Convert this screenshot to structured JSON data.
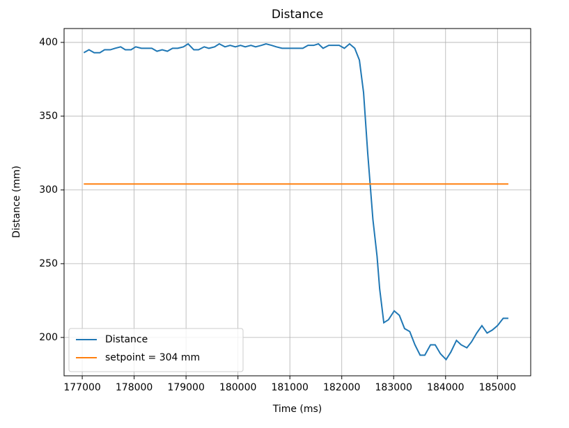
{
  "chart_data": {
    "type": "line",
    "title": "Distance",
    "xlabel": "Time (ms)",
    "ylabel": "Distance (mm)",
    "xlim": [
      176650,
      185640
    ],
    "ylim": [
      174,
      409.4
    ],
    "xticks": [
      177000,
      178000,
      179000,
      180000,
      181000,
      182000,
      183000,
      184000,
      185000
    ],
    "yticks": [
      200,
      250,
      300,
      350,
      400
    ],
    "grid": true,
    "legend": "lower left",
    "series": [
      {
        "name": "Distance",
        "color": "#1f77b4",
        "x": [
          177030,
          177130,
          177230,
          177340,
          177430,
          177540,
          177630,
          177740,
          177830,
          177940,
          178030,
          178140,
          178230,
          178340,
          178440,
          178540,
          178640,
          178740,
          178840,
          178950,
          179040,
          179150,
          179240,
          179350,
          179440,
          179550,
          179640,
          179750,
          179850,
          179950,
          180050,
          180140,
          180250,
          180340,
          180450,
          180540,
          180650,
          180740,
          180850,
          180950,
          181050,
          181150,
          181250,
          181350,
          181460,
          181550,
          181640,
          181750,
          181840,
          181950,
          182050,
          182150,
          182250,
          182340,
          182420,
          182500,
          182600,
          182680,
          182730,
          182810,
          182900,
          183010,
          183110,
          183210,
          183310,
          183410,
          183510,
          183600,
          183710,
          183800,
          183900,
          184010,
          184100,
          184210,
          184300,
          184410,
          184500,
          184600,
          184700,
          184800,
          184900,
          185000,
          185110,
          185210
        ],
        "values": [
          393,
          395,
          393,
          393,
          395,
          395,
          396,
          397,
          395,
          395,
          397,
          396,
          396,
          396,
          394,
          395,
          394,
          396,
          396,
          397,
          399,
          395,
          395,
          397,
          396,
          397,
          399,
          397,
          398,
          397,
          398,
          397,
          398,
          397,
          398,
          399,
          398,
          397,
          396,
          396,
          396,
          396,
          396,
          398,
          398,
          399,
          396,
          398,
          398,
          398,
          396,
          399,
          396,
          388,
          366,
          325,
          280,
          255,
          233,
          210,
          212,
          218,
          215,
          206,
          204,
          195,
          188,
          188,
          195,
          195,
          189,
          185,
          190,
          198,
          195,
          193,
          197,
          203,
          208,
          203,
          205,
          208,
          213,
          213
        ]
      },
      {
        "name": "setpoint = 304 mm",
        "color": "#ff7f0e",
        "x": [
          177030,
          185210
        ],
        "values": [
          304,
          304
        ]
      }
    ]
  }
}
